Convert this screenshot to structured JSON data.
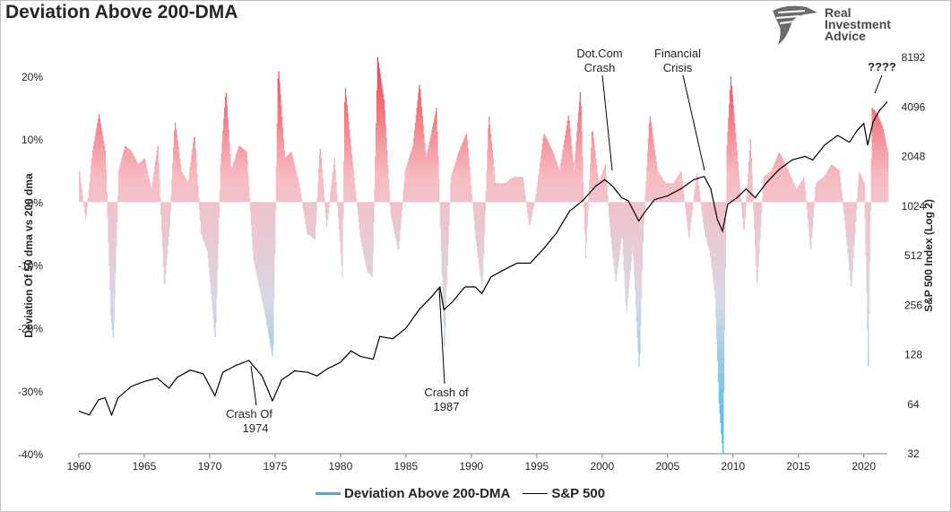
{
  "header": {
    "title": "Deviation Above 200-DMA"
  },
  "logo": {
    "line1": "Real",
    "line2": "Investment",
    "line3": "Advice",
    "icon": "eagle-head-icon"
  },
  "legend": {
    "series1": "Deviation Above 200-DMA",
    "series2": "S&P 500",
    "series1_color": "#4da6e6",
    "series2_color": "#000000"
  },
  "annotations": {
    "dotcom": [
      "Dot.Com",
      "Crash"
    ],
    "financial": [
      "Financial",
      "Crisis"
    ],
    "crash1974": [
      "Crash Of",
      "1974"
    ],
    "crash1987": [
      "Crash of",
      "1987"
    ],
    "unknown": "????"
  },
  "colors": {
    "positive": "#f03a46",
    "neutral": "#d8d8e4",
    "negative": "#3cb4ec"
  },
  "chart_data": {
    "type": "area",
    "title": "Deviation Above 200-DMA",
    "ylabel": "Deviation Of 50 dma vs 200 dma",
    "y2label": "S&P 500 Index (Log 2)",
    "x_ticks": [
      "1960",
      "1965",
      "1970",
      "1975",
      "1980",
      "1985",
      "1990",
      "1995",
      "2000",
      "2005",
      "2010",
      "2015",
      "2020"
    ],
    "y_ticks": [
      "-40%",
      "-30%",
      "-20%",
      "-10%",
      "0%",
      "10%",
      "20%"
    ],
    "y2_ticks": [
      "32",
      "64",
      "128",
      "256",
      "512",
      "1024",
      "2048",
      "4096",
      "8192"
    ],
    "xlim": [
      1960,
      2021.8
    ],
    "ylim": [
      -0.4,
      0.23
    ],
    "y2lim_log2": [
      5,
      13
    ],
    "series": [
      {
        "name": "Deviation Above 200-DMA",
        "x": [
          1960.0,
          1960.5,
          1961.0,
          1961.5,
          1962.0,
          1962.4,
          1962.6,
          1963.0,
          1963.5,
          1964.0,
          1964.5,
          1965.0,
          1965.5,
          1966.0,
          1966.5,
          1966.9,
          1967.3,
          1967.8,
          1968.3,
          1968.8,
          1969.3,
          1969.8,
          1970.4,
          1970.8,
          1971.2,
          1971.6,
          1972.2,
          1972.8,
          1973.3,
          1973.8,
          1974.3,
          1974.8,
          1975.2,
          1975.7,
          1976.2,
          1976.8,
          1977.4,
          1978.0,
          1978.4,
          1978.9,
          1979.5,
          1980.1,
          1980.3,
          1980.8,
          1981.5,
          1982.0,
          1982.4,
          1982.8,
          1983.3,
          1983.8,
          1984.4,
          1984.9,
          1985.5,
          1986.0,
          1986.5,
          1987.3,
          1987.9,
          1988.4,
          1989.0,
          1989.6,
          1990.3,
          1990.8,
          1991.3,
          1991.8,
          1992.5,
          1993.2,
          1993.9,
          1994.4,
          1994.9,
          1995.5,
          1996.2,
          1996.7,
          1997.4,
          1997.8,
          1998.3,
          1998.7,
          1999.2,
          1999.7,
          2000.2,
          2000.6,
          2001.0,
          2001.5,
          2001.8,
          2002.3,
          2002.8,
          2003.1,
          2003.6,
          2004.2,
          2004.8,
          2005.4,
          2006.0,
          2006.6,
          2007.2,
          2007.8,
          2008.2,
          2008.6,
          2008.9,
          2009.2,
          2009.5,
          2009.8,
          2010.4,
          2010.8,
          2011.3,
          2011.8,
          2012.3,
          2012.9,
          2013.5,
          2014.2,
          2014.8,
          2015.4,
          2015.9,
          2016.3,
          2016.9,
          2017.5,
          2018.1,
          2018.5,
          2019.0,
          2019.6,
          2020.0,
          2020.3,
          2020.6,
          2021.0,
          2021.4,
          2021.8
        ],
        "values": [
          0.05,
          -0.03,
          0.08,
          0.14,
          0.08,
          -0.18,
          -0.22,
          0.05,
          0.09,
          0.08,
          0.06,
          0.07,
          0.02,
          0.09,
          -0.14,
          -0.04,
          0.13,
          0.05,
          0.03,
          0.11,
          -0.05,
          -0.08,
          -0.22,
          0.06,
          0.18,
          0.05,
          0.09,
          0.08,
          -0.09,
          -0.14,
          -0.19,
          -0.25,
          0.22,
          0.07,
          0.08,
          0.03,
          -0.05,
          -0.06,
          0.09,
          -0.04,
          0.07,
          -0.12,
          0.19,
          0.08,
          -0.06,
          -0.11,
          -0.12,
          0.23,
          0.16,
          -0.02,
          -0.08,
          0.05,
          0.09,
          0.19,
          0.07,
          0.15,
          -0.23,
          0.04,
          0.08,
          0.11,
          -0.06,
          -0.14,
          0.14,
          0.03,
          0.03,
          0.04,
          0.04,
          -0.04,
          0.01,
          0.11,
          0.08,
          0.05,
          0.14,
          0.05,
          0.18,
          -0.09,
          0.12,
          0.03,
          0.06,
          -0.05,
          -0.13,
          -0.05,
          -0.18,
          -0.07,
          -0.27,
          -0.05,
          0.14,
          0.05,
          0.03,
          0.03,
          0.05,
          -0.06,
          0.05,
          -0.05,
          -0.08,
          -0.15,
          -0.32,
          -0.4,
          0.09,
          0.2,
          0.05,
          -0.05,
          0.1,
          -0.14,
          0.04,
          0.05,
          0.08,
          0.05,
          0.02,
          0.04,
          -0.08,
          0.03,
          0.04,
          0.06,
          0.05,
          -0.03,
          -0.14,
          0.05,
          0.03,
          -0.26,
          0.15,
          0.14,
          0.12,
          0.08
        ],
        "color_scale": "red above zero, pale near zero, blue below zero"
      },
      {
        "name": "S&P 500",
        "x": [
          1960.0,
          1960.8,
          1961.5,
          1962.0,
          1962.5,
          1963.0,
          1964.0,
          1965.0,
          1966.0,
          1966.9,
          1967.5,
          1968.5,
          1969.5,
          1970.4,
          1971.0,
          1972.0,
          1973.0,
          1974.0,
          1974.8,
          1975.5,
          1976.5,
          1977.5,
          1978.2,
          1979.0,
          1980.0,
          1980.8,
          1981.5,
          1982.5,
          1983.0,
          1984.0,
          1985.0,
          1986.0,
          1987.0,
          1987.6,
          1987.9,
          1988.5,
          1989.5,
          1990.3,
          1990.8,
          1991.5,
          1992.5,
          1993.5,
          1994.5,
          1995.5,
          1996.5,
          1997.5,
          1998.5,
          1999.5,
          2000.2,
          2000.8,
          2001.5,
          2002.0,
          2002.8,
          2003.3,
          2004.0,
          2005.0,
          2006.0,
          2007.0,
          2007.8,
          2008.3,
          2008.8,
          2009.2,
          2009.6,
          2010.3,
          2011.0,
          2011.7,
          2012.5,
          2013.5,
          2014.5,
          2015.5,
          2016.1,
          2017.0,
          2018.0,
          2018.9,
          2019.5,
          2020.0,
          2020.3,
          2020.7,
          2021.2,
          2021.8
        ],
        "values": [
          58,
          55,
          68,
          70,
          55,
          70,
          82,
          88,
          92,
          80,
          93,
          103,
          98,
          72,
          100,
          110,
          118,
          95,
          67,
          90,
          102,
          100,
          95,
          105,
          115,
          135,
          125,
          120,
          165,
          160,
          185,
          240,
          290,
          330,
          240,
          265,
          330,
          330,
          300,
          380,
          420,
          460,
          460,
          560,
          700,
          950,
          1100,
          1350,
          1480,
          1350,
          1150,
          1100,
          830,
          950,
          1120,
          1180,
          1300,
          1480,
          1550,
          1300,
          850,
          720,
          1050,
          1150,
          1300,
          1150,
          1400,
          1700,
          1950,
          2050,
          1950,
          2400,
          2750,
          2500,
          2950,
          3250,
          2400,
          3300,
          3900,
          4400
        ]
      }
    ]
  }
}
